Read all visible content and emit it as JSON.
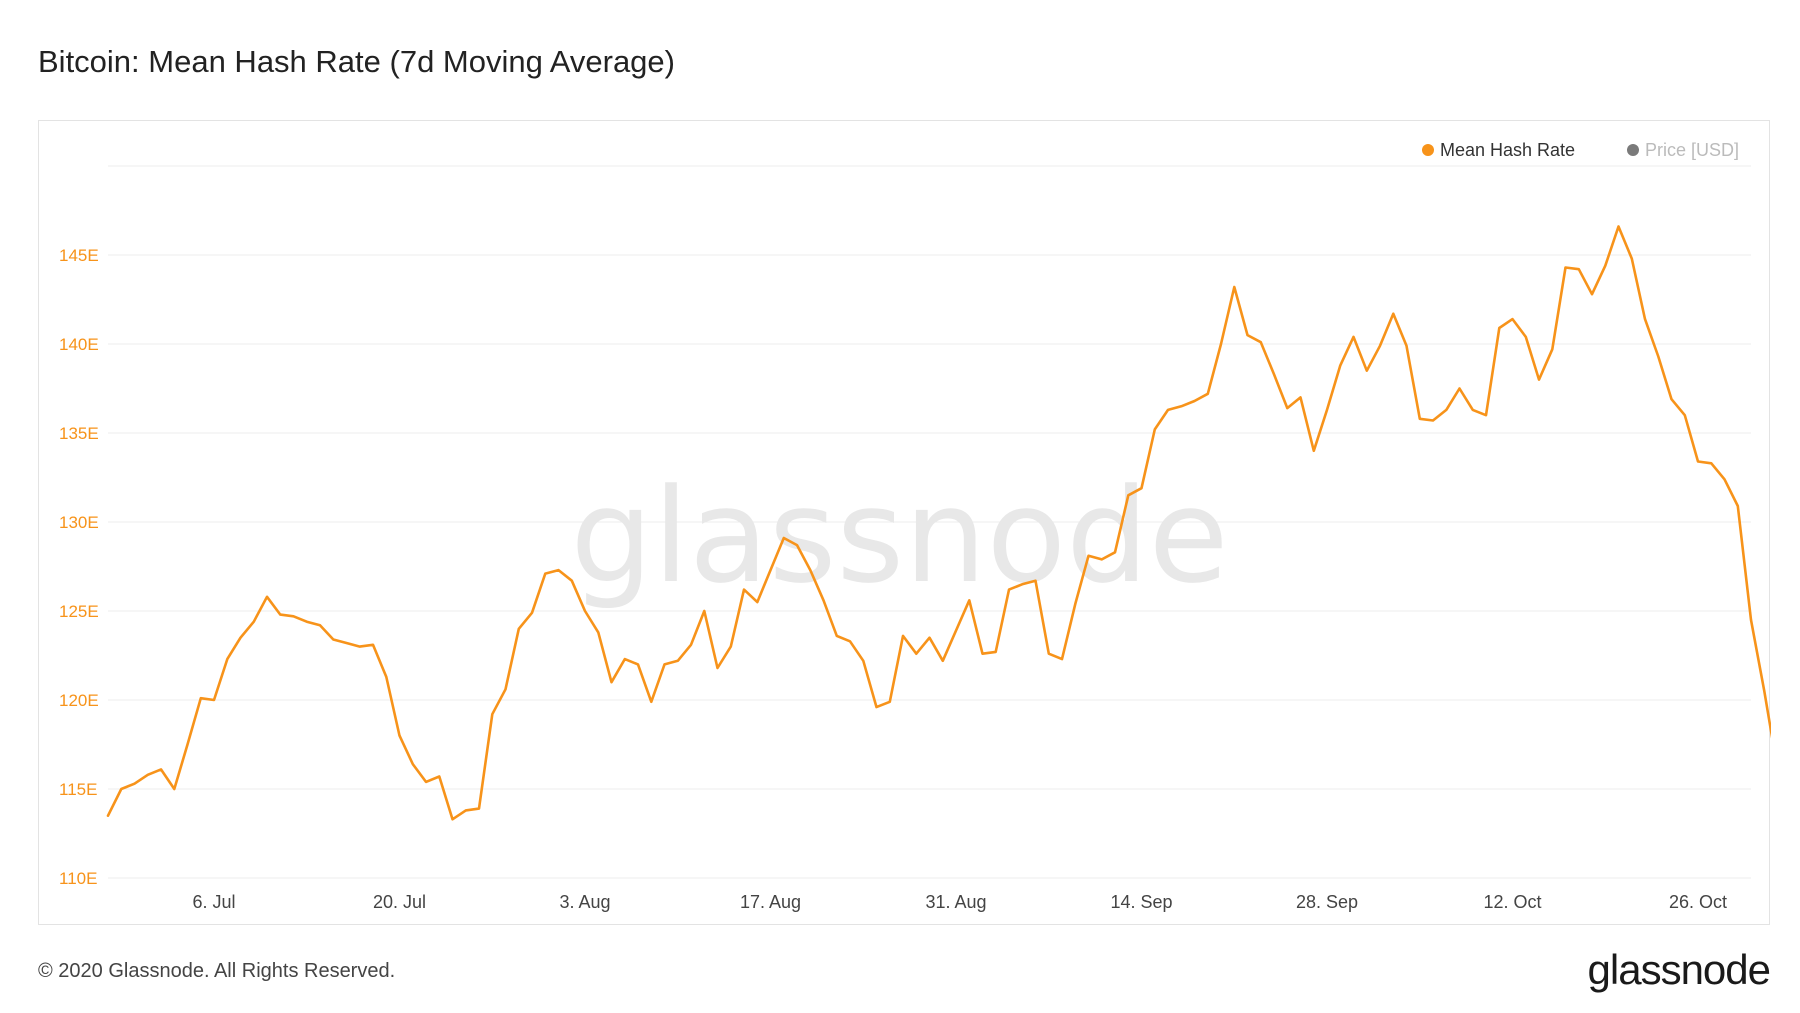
{
  "header": {
    "title": "Bitcoin: Mean Hash Rate (7d Moving Average)"
  },
  "footer": {
    "copyright": "© 2020 Glassnode. All Rights Reserved.",
    "logo_text": "glassnode"
  },
  "watermark": {
    "text": "glassnode"
  },
  "colors": {
    "series": "#f7931a",
    "axis_text": "#f7931a",
    "tick_text": "#444444",
    "grid": "#ececec",
    "inactive": "#bbbbbb",
    "watermark": "#e8e8e8"
  },
  "chart_data": {
    "type": "line",
    "title": "Bitcoin: Mean Hash Rate (7d Moving Average)",
    "xlabel": "",
    "ylabel": "",
    "x_start": "2020-06-28",
    "x_step_days": 1,
    "xlim": [
      "2020-06-28",
      "2020-10-30"
    ],
    "ylim": [
      110,
      150
    ],
    "yticks": [
      110,
      115,
      120,
      125,
      130,
      135,
      140,
      145
    ],
    "y_tick_suffix": "E",
    "xticks": [
      {
        "date": "2020-07-06",
        "label": "6. Jul"
      },
      {
        "date": "2020-07-20",
        "label": "20. Jul"
      },
      {
        "date": "2020-08-03",
        "label": "3. Aug"
      },
      {
        "date": "2020-08-17",
        "label": "17. Aug"
      },
      {
        "date": "2020-08-31",
        "label": "31. Aug"
      },
      {
        "date": "2020-09-14",
        "label": "14. Sep"
      },
      {
        "date": "2020-09-28",
        "label": "28. Sep"
      },
      {
        "date": "2020-10-12",
        "label": "12. Oct"
      },
      {
        "date": "2020-10-26",
        "label": "26. Oct"
      }
    ],
    "grid": true,
    "legend_position": "top-right",
    "series": [
      {
        "name": "Mean Hash Rate",
        "active": true,
        "values": [
          113.5,
          115.0,
          115.3,
          115.8,
          116.1,
          115.0,
          117.5,
          120.1,
          120.0,
          122.3,
          123.5,
          124.4,
          125.8,
          124.8,
          124.7,
          124.4,
          124.2,
          123.4,
          123.2,
          123.0,
          123.1,
          121.3,
          118.0,
          116.4,
          115.4,
          115.7,
          113.3,
          113.8,
          113.9,
          119.2,
          120.6,
          124.0,
          124.9,
          127.1,
          127.3,
          126.7,
          125.0,
          123.8,
          121.0,
          122.3,
          122.0,
          119.9,
          122.0,
          122.2,
          123.1,
          125.0,
          121.8,
          123.0,
          126.2,
          125.5,
          127.3,
          129.1,
          128.7,
          127.3,
          125.6,
          123.6,
          123.3,
          122.2,
          119.6,
          119.9,
          123.6,
          122.6,
          123.5,
          122.2,
          123.9,
          125.6,
          122.6,
          122.7,
          126.2,
          126.5,
          126.7,
          122.6,
          122.3,
          125.4,
          128.1,
          127.9,
          128.3,
          131.5,
          131.9,
          135.2,
          136.3,
          136.5,
          136.8,
          137.2,
          140.0,
          143.2,
          140.5,
          140.1,
          138.3,
          136.4,
          137.0,
          134.0,
          136.3,
          138.8,
          140.4,
          138.5,
          139.9,
          141.7,
          139.9,
          135.8,
          135.7,
          136.3,
          137.5,
          136.3,
          136.0,
          140.9,
          141.4,
          140.4,
          138.0,
          139.7,
          144.3,
          144.2,
          142.8,
          144.4,
          146.6,
          144.8,
          141.4,
          139.3,
          136.9,
          136.0,
          133.4,
          133.3,
          132.4,
          130.9,
          124.5,
          120.5,
          116.1
        ]
      },
      {
        "name": "Price [USD]",
        "active": false,
        "values": []
      }
    ]
  }
}
